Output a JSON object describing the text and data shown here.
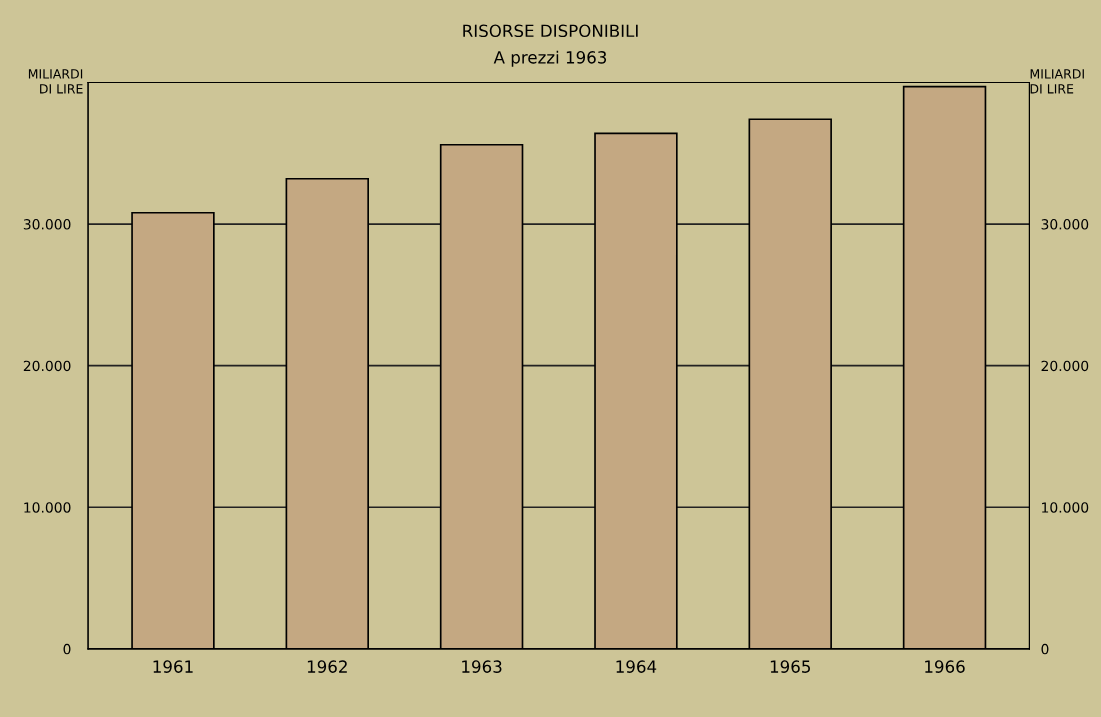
{
  "chart_data": {
    "type": "bar",
    "title": "RISORSE DISPONIBILI",
    "subtitle": "A prezzi 1963",
    "ylabel": "MILIARDI\nDI LIRE",
    "y2label": "MILIARDI\nDI LIRE",
    "categories": [
      "1961",
      "1962",
      "1963",
      "1964",
      "1965",
      "1966"
    ],
    "values": [
      30800,
      33200,
      35600,
      36400,
      37400,
      39700
    ],
    "color": "#c4a882",
    "ylim": [
      0,
      40000
    ],
    "yticks": [
      0,
      {
        "value": 10000,
        "label": "10.000"
      },
      {
        "value": 20000,
        "label": "20.000"
      },
      {
        "value": 30000,
        "label": "30.000"
      }
    ],
    "y2lim": [
      0,
      40000
    ],
    "y2ticks": [
      0,
      {
        "value": 10000,
        "label": "10.000"
      },
      {
        "value": 20000,
        "label": "20.000"
      },
      {
        "value": 30000,
        "label": "30.000"
      }
    ],
    "grid": "y"
  }
}
